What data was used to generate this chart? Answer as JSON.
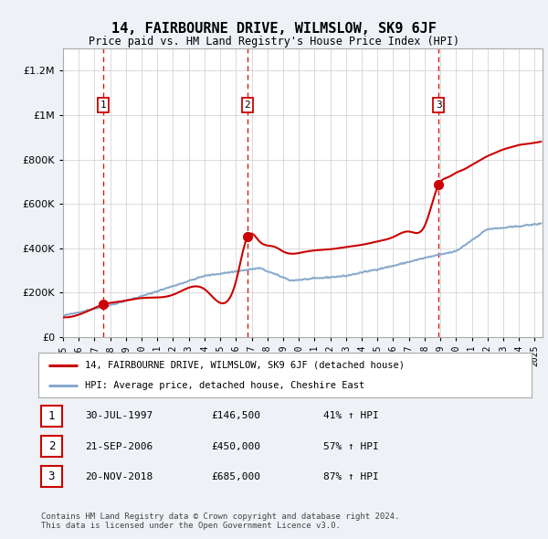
{
  "title": "14, FAIRBOURNE DRIVE, WILMSLOW, SK9 6JF",
  "subtitle": "Price paid vs. HM Land Registry's House Price Index (HPI)",
  "ylabel_ticks": [
    "£0",
    "£200K",
    "£400K",
    "£600K",
    "£800K",
    "£1M",
    "£1.2M"
  ],
  "ytick_values": [
    0,
    200000,
    400000,
    600000,
    800000,
    1000000,
    1200000
  ],
  "ylim": [
    0,
    1300000
  ],
  "xlim_start": 1995.0,
  "xlim_end": 2025.5,
  "sale_color": "#cc0000",
  "hpi_color": "#88aacc",
  "dashed_line_color": "#cc0000",
  "purchases": [
    {
      "date_num": 1997.57,
      "price": 146500,
      "label": "1"
    },
    {
      "date_num": 2006.72,
      "price": 450000,
      "label": "2"
    },
    {
      "date_num": 2018.89,
      "price": 685000,
      "label": "3"
    }
  ],
  "legend_sale_label": "14, FAIRBOURNE DRIVE, WILMSLOW, SK9 6JF (detached house)",
  "legend_hpi_label": "HPI: Average price, detached house, Cheshire East",
  "table_rows": [
    [
      "1",
      "30-JUL-1997",
      "£146,500",
      "41% ↑ HPI"
    ],
    [
      "2",
      "21-SEP-2006",
      "£450,000",
      "57% ↑ HPI"
    ],
    [
      "3",
      "20-NOV-2018",
      "£685,000",
      "87% ↑ HPI"
    ]
  ],
  "footer": "Contains HM Land Registry data © Crown copyright and database right 2024.\nThis data is licensed under the Open Government Licence v3.0.",
  "background_color": "#eef2f7",
  "plot_bg_color": "#ffffff",
  "grid_color": "#cccccc",
  "xticks": [
    1995,
    1996,
    1997,
    1998,
    1999,
    2000,
    2001,
    2002,
    2003,
    2004,
    2005,
    2006,
    2007,
    2008,
    2009,
    2010,
    2011,
    2012,
    2013,
    2014,
    2015,
    2016,
    2017,
    2018,
    2019,
    2020,
    2021,
    2022,
    2023,
    2024,
    2025
  ]
}
